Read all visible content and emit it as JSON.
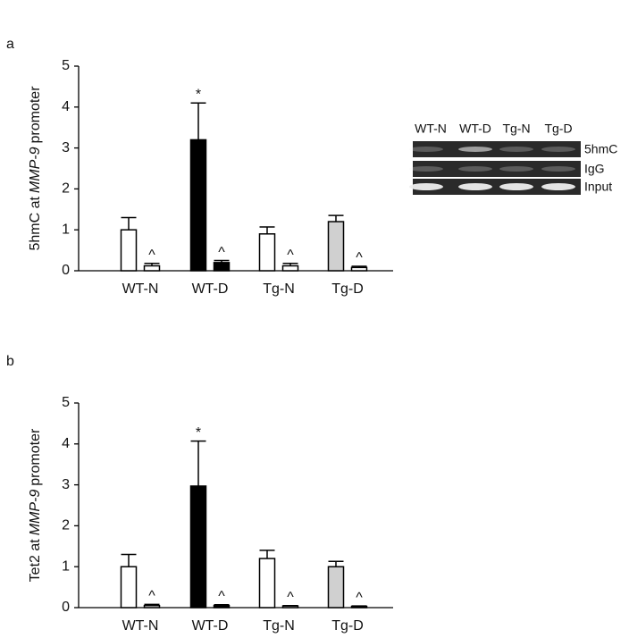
{
  "chart_data": [
    {
      "type": "bar",
      "panel": "a",
      "ylabel": [
        "5hmC at",
        "MMP-9",
        "promoter"
      ],
      "categories": [
        "WT-N",
        "WT-D",
        "Tg-N",
        "Tg-D"
      ],
      "series": [
        {
          "colors": [
            "#ffffff",
            "#000000",
            "#ffffff",
            "#d0d0d0"
          ],
          "values": [
            1.0,
            3.2,
            0.9,
            1.2
          ],
          "errors": [
            0.3,
            0.9,
            0.17,
            0.15
          ],
          "annotations": [
            null,
            "*",
            null,
            null
          ]
        },
        {
          "colors": [
            "#ffffff",
            "#000000",
            "#ffffff",
            "#ffffff"
          ],
          "values": [
            0.12,
            0.2,
            0.12,
            0.08
          ],
          "errors": [
            0.06,
            0.05,
            0.06,
            0.03
          ],
          "annotations": [
            "^",
            "^",
            "^",
            "^"
          ]
        }
      ],
      "ylim": [
        0,
        5
      ],
      "yticks": [
        0,
        1,
        2,
        3,
        4,
        5
      ],
      "grid": false
    },
    {
      "type": "bar",
      "panel": "b",
      "ylabel": [
        "Tet2 at",
        "MMP-9",
        "promoter"
      ],
      "categories": [
        "WT-N",
        "WT-D",
        "Tg-N",
        "Tg-D"
      ],
      "series": [
        {
          "colors": [
            "#ffffff",
            "#000000",
            "#ffffff",
            "#d0d0d0"
          ],
          "values": [
            1.0,
            2.97,
            1.2,
            1.0
          ],
          "errors": [
            0.3,
            1.1,
            0.2,
            0.13
          ],
          "annotations": [
            null,
            "*",
            null,
            null
          ]
        },
        {
          "colors": [
            "#ffffff",
            "#000000",
            "#ffffff",
            "#ffffff"
          ],
          "values": [
            0.05,
            0.05,
            0.04,
            0.03
          ],
          "errors": [
            0.03,
            0.02,
            0.01,
            0.01
          ],
          "annotations": [
            "^",
            "^",
            "^",
            "^"
          ]
        }
      ],
      "ylim": [
        0,
        5
      ],
      "yticks": [
        0,
        1,
        2,
        3,
        4,
        5
      ],
      "grid": false
    }
  ],
  "gel": {
    "lanes": [
      "WT-N",
      "WT-D",
      "Tg-N",
      "Tg-D"
    ],
    "rows": [
      "5hmC",
      "IgG",
      "Input"
    ]
  }
}
